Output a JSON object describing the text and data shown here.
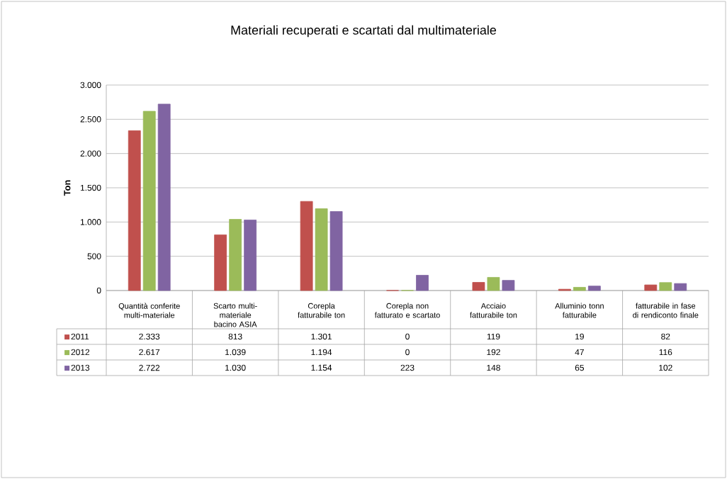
{
  "chart_data": {
    "type": "bar",
    "title": "Materiali recuperati e scartati dal multimateriale",
    "ylabel": "Ton",
    "categories": [
      "Quantità conferite multi-materiale",
      "Scarto multi-materiale bacino ASIA",
      "Corepla fatturabile ton",
      "Corepla non fatturato e scartato",
      "Acciaio fatturabile ton",
      "Alluminio tonn fatturabile",
      "fatturabile in fase di rendiconto finale"
    ],
    "series": [
      {
        "name": "2011",
        "color": "#c0504d",
        "values": [
          2333,
          813,
          1301,
          0,
          119,
          19,
          82
        ],
        "value_labels": [
          "2.333",
          "813",
          "1.301",
          "0",
          "119",
          "19",
          "82"
        ]
      },
      {
        "name": "2012",
        "color": "#9bbb59",
        "values": [
          2617,
          1039,
          1194,
          0,
          192,
          47,
          116
        ],
        "value_labels": [
          "2.617",
          "1.039",
          "1.194",
          "0",
          "192",
          "47",
          "116"
        ]
      },
      {
        "name": "2013",
        "color": "#8064a2",
        "values": [
          2722,
          1030,
          1154,
          223,
          148,
          65,
          102
        ],
        "value_labels": [
          "2.722",
          "1.030",
          "1.154",
          "223",
          "148",
          "65",
          "102"
        ]
      }
    ],
    "ylim": [
      0,
      3000
    ],
    "yticks": [
      {
        "value": 0,
        "label": "0"
      },
      {
        "value": 500,
        "label": "500"
      },
      {
        "value": 1000,
        "label": "1.000"
      },
      {
        "value": 1500,
        "label": "1.500"
      },
      {
        "value": 2000,
        "label": "2.000"
      },
      {
        "value": 2500,
        "label": "2.500"
      },
      {
        "value": 3000,
        "label": "3.000"
      }
    ],
    "grid": "y",
    "legend": "bottom"
  }
}
